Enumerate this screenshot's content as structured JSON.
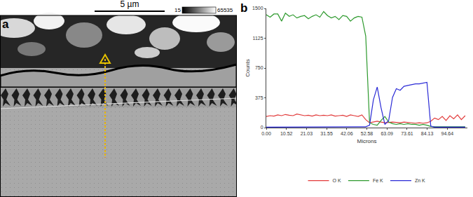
{
  "chart_data": {
    "type": "line",
    "x_label": "Microns",
    "y_label": "Counts",
    "x": [
      0,
      2,
      4,
      6,
      8,
      10,
      12,
      14,
      16,
      18,
      20,
      22,
      24,
      26,
      28,
      30,
      32,
      34,
      36,
      38,
      40,
      42,
      44,
      46,
      48,
      50,
      52,
      54,
      56,
      58,
      60,
      62,
      64,
      66,
      68,
      70,
      72,
      74,
      76,
      78,
      80,
      82,
      84,
      86,
      88,
      90,
      92,
      94,
      96,
      98,
      100,
      102,
      104
    ],
    "series": [
      {
        "name": "O K",
        "color": "#e23b3b",
        "values": [
          140,
          150,
          145,
          160,
          150,
          165,
          155,
          150,
          170,
          160,
          150,
          155,
          145,
          160,
          150,
          155,
          150,
          160,
          145,
          150,
          155,
          140,
          160,
          150,
          140,
          160,
          100,
          60,
          70,
          80,
          70,
          60,
          65,
          70,
          65,
          60,
          70,
          65,
          60,
          55,
          60,
          55,
          60,
          80,
          120,
          100,
          140,
          90,
          150,
          110,
          160,
          100,
          150
        ]
      },
      {
        "name": "Fe K",
        "color": "#2e9a2e",
        "values": [
          1420,
          1390,
          1430,
          1430,
          1340,
          1440,
          1400,
          1420,
          1380,
          1400,
          1410,
          1370,
          1400,
          1420,
          1390,
          1460,
          1410,
          1380,
          1400,
          1360,
          1410,
          1400,
          1340,
          1380,
          1400,
          1390,
          1150,
          60,
          40,
          30,
          90,
          140,
          70,
          50,
          40,
          50,
          40,
          50,
          40,
          40,
          30,
          40,
          30,
          15,
          10,
          10,
          15,
          10,
          10,
          15,
          10,
          10,
          10
        ]
      },
      {
        "name": "Zn K",
        "color": "#2b2bd6",
        "values": [
          5,
          5,
          5,
          5,
          5,
          5,
          5,
          5,
          5,
          5,
          5,
          5,
          5,
          5,
          5,
          5,
          5,
          5,
          5,
          5,
          5,
          5,
          5,
          5,
          5,
          5,
          10,
          30,
          350,
          510,
          250,
          40,
          90,
          380,
          490,
          470,
          520,
          530,
          540,
          550,
          550,
          560,
          570,
          20,
          5,
          5,
          5,
          5,
          5,
          5,
          5,
          5,
          5
        ]
      }
    ],
    "xlim": [
      0,
      105.15
    ],
    "xticks": [
      {
        "value": 0,
        "label": "0.00"
      },
      {
        "value": 10.52,
        "label": "10.52"
      },
      {
        "value": 21.03,
        "label": "21.03"
      },
      {
        "value": 31.55,
        "label": "31.55"
      },
      {
        "value": 42.06,
        "label": "42.06"
      },
      {
        "value": 52.58,
        "label": "52.58"
      },
      {
        "value": 63.09,
        "label": "63.09"
      },
      {
        "value": 73.61,
        "label": "73.61"
      },
      {
        "value": 84.13,
        "label": "84.13"
      },
      {
        "value": 94.64,
        "label": "94.64"
      }
    ],
    "ylim": [
      0,
      1500
    ],
    "yticks": [
      0,
      375,
      750,
      1125,
      1500
    ],
    "grid": false,
    "legend": "bottom"
  },
  "panel_label": "b",
  "image_panel": {
    "label": "a",
    "scale_bar": "5 µm",
    "intensity_min": "15",
    "intensity_max": "65535"
  }
}
